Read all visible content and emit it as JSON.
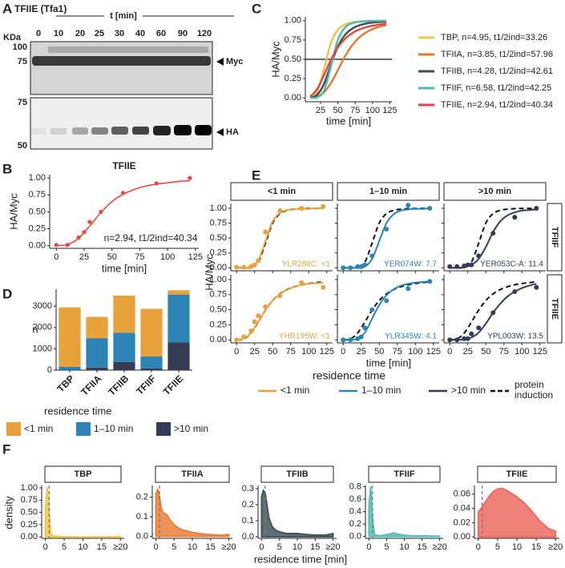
{
  "panel_labels": [
    "A",
    "B",
    "C",
    "D",
    "E",
    "F"
  ],
  "blot": {
    "protein": "TFIIE (Tfa1)",
    "time_label": "t [min]",
    "unit": "KDa",
    "lanes": [
      0,
      10,
      20,
      25,
      30,
      40,
      60,
      90,
      120
    ],
    "markers_top": [
      100,
      75
    ],
    "markers_bottom": [
      75,
      50
    ],
    "bands": [
      "Myc",
      "HA"
    ]
  },
  "chart_data": [
    {
      "type": "scatter",
      "title": "TFIIE",
      "xlabel": "time [min]",
      "ylabel": "HA/Myc",
      "annotation": "n=2.94,  t1/2ind=40.34",
      "color": "#e5483f",
      "x": [
        0,
        10,
        20,
        25,
        30,
        40,
        60,
        90,
        120
      ],
      "values": [
        0.01,
        0.01,
        0.12,
        0.2,
        0.35,
        0.5,
        0.78,
        0.92,
        1.0
      ],
      "fit": {
        "x": [
          0,
          10,
          20,
          30,
          40,
          50,
          60,
          70,
          80,
          90,
          100,
          110,
          120
        ],
        "values": [
          0,
          0.016,
          0.11,
          0.29,
          0.49,
          0.65,
          0.76,
          0.83,
          0.88,
          0.91,
          0.93,
          0.95,
          0.96
        ]
      },
      "xlim": [
        -6,
        128
      ],
      "ylim": [
        -0.04,
        1.05
      ],
      "xticks": [
        0,
        25,
        50,
        75,
        100,
        125
      ],
      "yticks": [
        {
          "value": 0,
          "label": "0.00"
        },
        {
          "value": 0.25,
          "label": "0.25"
        },
        {
          "value": 0.5,
          "label": "0.50"
        },
        {
          "value": 0.75,
          "label": "0.75"
        },
        {
          "value": 1,
          "label": "1.00"
        }
      ]
    },
    {
      "type": "line",
      "xlabel": "time [min]",
      "ylabel": "HA/Myc",
      "hline": 0.5,
      "x": [
        10,
        20,
        30,
        40,
        50,
        60,
        70,
        80,
        90,
        100,
        110,
        120
      ],
      "series": [
        {
          "name": "TBP, n=4.95,  t1/2ind=33.26",
          "color": "#f2c14e",
          "values": [
            0.003,
            0.074,
            0.375,
            0.714,
            0.883,
            0.949,
            0.976,
            0.987,
            0.993,
            0.996,
            0.997,
            0.998
          ]
        },
        {
          "name": "TFIIA, n=3.85,  t1/2ind=57.96",
          "color": "#e9752f",
          "values": [
            0.001,
            0.016,
            0.073,
            0.193,
            0.361,
            0.533,
            0.674,
            0.776,
            0.845,
            0.891,
            0.922,
            0.943
          ]
        },
        {
          "name": "TFIIB, n=4.28,  t1/2ind=42.61",
          "color": "#3d4b53",
          "values": [
            0.002,
            0.038,
            0.182,
            0.433,
            0.665,
            0.812,
            0.893,
            0.937,
            0.961,
            0.975,
            0.983,
            0.988
          ]
        },
        {
          "name": "TFIIF, n=6.58,  t1/2ind=42.25",
          "color": "#4fb8b1",
          "values": [
            0,
            0.007,
            0.095,
            0.411,
            0.752,
            0.91,
            0.965,
            0.985,
            0.993,
            0.996,
            0.998,
            0.999
          ]
        },
        {
          "name": "TFIIE, n=2.94,  t1/2ind=40.34",
          "color": "#e5463d",
          "values": [
            0.016,
            0.113,
            0.295,
            0.494,
            0.653,
            0.763,
            0.835,
            0.882,
            0.914,
            0.935,
            0.95,
            0.961
          ]
        }
      ],
      "xlim": [
        3,
        128
      ],
      "ylim": [
        -0.05,
        1.05
      ],
      "xticks": [
        25,
        50,
        75,
        100,
        125
      ],
      "yticks": [
        {
          "value": 0,
          "label": "0.00"
        },
        {
          "value": 0.25,
          "label": "0.25"
        },
        {
          "value": 0.5,
          "label": "0.50"
        },
        {
          "value": 0.75,
          "label": "0.75"
        },
        {
          "value": 1,
          "label": "1.00"
        }
      ]
    },
    {
      "type": "bar",
      "stacked": true,
      "ylabel": "n",
      "legend_title": "residence time",
      "categories": [
        "TBP",
        "TFIIA",
        "TFIIB",
        "TFIIF",
        "TFIIE"
      ],
      "series": [
        {
          "name": "<1 min",
          "color": "#e9a23b",
          "values": [
            2790,
            1000,
            1740,
            2240,
            200
          ]
        },
        {
          "name": "1–10 min",
          "color": "#2b83b6",
          "values": [
            150,
            1380,
            1380,
            560,
            2250
          ]
        },
        {
          "name": ">10 min",
          "color": "#363b55",
          "values": [
            10,
            120,
            380,
            80,
            1300
          ]
        }
      ],
      "ylim": [
        0,
        3800
      ],
      "yticks": [
        0,
        1000,
        2000,
        3000
      ]
    },
    {
      "type": "facet",
      "xlabel": "time [min]",
      "ylabel": "HA/Myc",
      "legend_title": "residence time",
      "induction_label": [
        "protein",
        "induction"
      ],
      "columns": [
        "<1 min",
        "1–10 min",
        ">10 min"
      ],
      "rows": [
        "TFIIF",
        "TFIIE"
      ],
      "legend": [
        {
          "name": "<1 min",
          "color": "#e9a23b"
        },
        {
          "name": "1–10 min",
          "color": "#2b83b6"
        },
        {
          "name": ">10 min",
          "color": "#363b55"
        }
      ],
      "x": [
        0,
        10,
        20,
        30,
        40,
        50,
        60,
        70,
        80,
        90,
        100,
        110,
        120
      ],
      "point_x": [
        0,
        10,
        20,
        25,
        30,
        40,
        60,
        90,
        120
      ],
      "induction": [
        [
          0,
          0,
          0.007,
          0.095,
          0.411,
          0.752,
          0.91,
          0.965,
          0.985,
          0.993,
          0.996,
          0.998,
          0.999
        ],
        [
          0,
          0.016,
          0.113,
          0.295,
          0.494,
          0.653,
          0.763,
          0.835,
          0.882,
          0.914,
          0.935,
          0.95,
          0.961
        ]
      ],
      "panels": [
        {
          "label": "YLR288C: <1",
          "values": [
            0.01,
            0.01,
            0.02,
            0.05,
            0.12,
            0.6,
            0.96,
            1.0,
            1.03
          ],
          "fit": [
            0,
            0,
            0.01,
            0.12,
            0.45,
            0.78,
            0.92,
            0.97,
            0.98,
            0.99,
            0.99,
            1.0,
            1.0
          ]
        },
        {
          "label": "YER074W: 7.7",
          "values": [
            0,
            0,
            0.02,
            0.02,
            0.05,
            0.2,
            0.65,
            1.05,
            1.0
          ],
          "fit": [
            0,
            0,
            0,
            0.02,
            0.15,
            0.45,
            0.75,
            0.9,
            0.96,
            0.98,
            0.99,
            0.99,
            1.0
          ]
        },
        {
          "label": "YER053C-A: 11.4",
          "values": [
            0.02,
            0.02,
            0.03,
            0.05,
            0.05,
            0.2,
            0.58,
            0.85,
            1.0
          ],
          "fit": [
            0,
            0,
            0.01,
            0.05,
            0.15,
            0.35,
            0.6,
            0.78,
            0.88,
            0.93,
            0.96,
            0.97,
            0.98
          ]
        },
        {
          "label": "YHR195W: <1",
          "values": [
            0,
            0.05,
            0.15,
            0.3,
            0.4,
            0.55,
            0.73,
            0.95,
            0.87
          ],
          "fit": [
            0,
            0.02,
            0.12,
            0.3,
            0.5,
            0.65,
            0.76,
            0.83,
            0.88,
            0.91,
            0.93,
            0.94,
            0.95
          ]
        },
        {
          "label": "YLR345W: 4.1",
          "values": [
            0,
            0,
            0.02,
            0.05,
            0.2,
            0.5,
            0.65,
            0.85,
            0.97
          ],
          "fit": [
            0,
            0,
            0.02,
            0.12,
            0.35,
            0.58,
            0.74,
            0.84,
            0.9,
            0.93,
            0.95,
            0.96,
            0.97
          ]
        },
        {
          "label": "YPL003W: 13.5",
          "values": [
            0,
            0,
            0.02,
            0.02,
            0.1,
            0.2,
            0.45,
            0.8,
            0.87
          ],
          "fit": [
            0,
            0,
            0.01,
            0.04,
            0.12,
            0.27,
            0.45,
            0.6,
            0.72,
            0.8,
            0.86,
            0.9,
            0.93
          ]
        }
      ],
      "xlim": [
        -8,
        133
      ],
      "ylim": [
        -0.05,
        1.08
      ],
      "xticks": [
        0,
        25,
        50,
        75,
        100,
        125
      ],
      "yticks": [
        {
          "value": 0,
          "label": "0.00"
        },
        {
          "value": 0.25,
          "label": "0.25"
        },
        {
          "value": 0.5,
          "label": "0.50"
        },
        {
          "value": 0.75,
          "label": "0.75"
        },
        {
          "value": 1,
          "label": "1.00"
        }
      ]
    },
    {
      "type": "density",
      "xlabel": "residence time [min]",
      "ylabel": "density",
      "vline": 1,
      "x": [
        0,
        0.5,
        1,
        1.5,
        2,
        3,
        4,
        5,
        6,
        7,
        8,
        10,
        12,
        14,
        16,
        18,
        20
      ],
      "xlim": [
        -1,
        21
      ],
      "xticks": [
        0,
        5,
        10,
        15,
        {
          "value": 20,
          "label": "≥20"
        }
      ],
      "panels": [
        {
          "title": "TBP",
          "color": "#f2c94c",
          "values": [
            0.6,
            1.0,
            0.5,
            0.05,
            0.02,
            0.01,
            0.01,
            0,
            0,
            0,
            0,
            0,
            0,
            0,
            0,
            0,
            0.01
          ],
          "ylim": [
            -0.03,
            1.05
          ],
          "yticks": [
            {
              "value": 0,
              "label": "0.00"
            },
            0.25,
            {
              "value": 0.5,
              "label": "0.50"
            },
            0.75,
            {
              "value": 1,
              "label": "1.00"
            }
          ]
        },
        {
          "title": "TFIIA",
          "color": "#e9803b",
          "values": [
            0.22,
            0.24,
            0.2,
            0.14,
            0.12,
            0.11,
            0.08,
            0.06,
            0.045,
            0.035,
            0.03,
            0.02,
            0.015,
            0.01,
            0.008,
            0.006,
            0.01
          ],
          "ylim": [
            -0.01,
            0.26
          ],
          "yticks": [
            {
              "value": 0,
              "label": "0.0"
            },
            0.1,
            0.2
          ]
        },
        {
          "title": "TFIIB",
          "color": "#44545a",
          "values": [
            0.25,
            0.29,
            0.27,
            0.2,
            0.12,
            0.06,
            0.04,
            0.03,
            0.025,
            0.02,
            0.02,
            0.02,
            0.015,
            0.012,
            0.01,
            0.01,
            0.02
          ],
          "ylim": [
            -0.01,
            0.32
          ],
          "yticks": [
            {
              "value": 0,
              "label": "0.0"
            },
            0.1,
            0.2,
            0.3
          ]
        },
        {
          "title": "TFIIF",
          "color": "#56bfb8",
          "values": [
            0.5,
            0.8,
            0.3,
            0.04,
            0.02,
            0.01,
            0.02,
            0.03,
            0.04,
            0.06,
            0.04,
            0.02,
            0.01,
            0.01,
            0.01,
            0.005,
            0.005
          ],
          "ylim": [
            -0.03,
            0.82
          ],
          "yticks": [
            {
              "value": 0,
              "label": "0.0"
            },
            0.2,
            0.4,
            0.6,
            0.8
          ]
        },
        {
          "title": "TFIIE",
          "color": "#ec6a63",
          "values": [
            0.035,
            0.038,
            0.042,
            0.046,
            0.05,
            0.058,
            0.064,
            0.067,
            0.068,
            0.066,
            0.063,
            0.056,
            0.047,
            0.035,
            0.022,
            0.012,
            0.008
          ],
          "ylim": [
            -0.002,
            0.072
          ],
          "yticks": [
            {
              "value": 0,
              "label": "0.00"
            },
            0.02,
            0.04,
            0.06
          ]
        }
      ]
    }
  ]
}
